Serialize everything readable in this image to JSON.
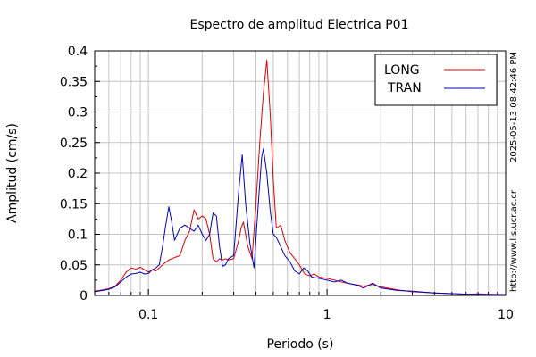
{
  "chart_data": {
    "type": "line",
    "title": "Espectro de amplitud Electrica P01",
    "xlabel": "Periodo (s)",
    "ylabel": "Amplitud (cm/s)",
    "xscale": "log",
    "xlim": [
      0.05,
      10
    ],
    "ylim": [
      0,
      0.4
    ],
    "x_ticks": [
      0.1,
      1,
      10
    ],
    "x_tick_labels": [
      "0.1",
      "1",
      "10"
    ],
    "y_ticks": [
      0,
      0.05,
      0.1,
      0.15,
      0.2,
      0.25,
      0.3,
      0.35,
      0.4
    ],
    "y_tick_labels": [
      "0",
      "0.05",
      "0.1",
      "0.15",
      "0.2",
      "0.25",
      "0.3",
      "0.35",
      "0.4"
    ],
    "grid": true,
    "legend_position": "top-right",
    "side_labels": [
      "2025-05-13 08:42:46 PM",
      "http://www.lis.ucr.ac.cr"
    ],
    "series": [
      {
        "name": "LONG",
        "color": "#e00000",
        "points": [
          [
            0.05,
            0.007
          ],
          [
            0.055,
            0.009
          ],
          [
            0.06,
            0.011
          ],
          [
            0.065,
            0.015
          ],
          [
            0.07,
            0.025
          ],
          [
            0.075,
            0.038
          ],
          [
            0.08,
            0.045
          ],
          [
            0.085,
            0.043
          ],
          [
            0.09,
            0.046
          ],
          [
            0.095,
            0.042
          ],
          [
            0.1,
            0.038
          ],
          [
            0.105,
            0.042
          ],
          [
            0.11,
            0.04
          ],
          [
            0.115,
            0.045
          ],
          [
            0.12,
            0.05
          ],
          [
            0.13,
            0.058
          ],
          [
            0.14,
            0.062
          ],
          [
            0.15,
            0.065
          ],
          [
            0.16,
            0.09
          ],
          [
            0.17,
            0.105
          ],
          [
            0.18,
            0.14
          ],
          [
            0.19,
            0.125
          ],
          [
            0.2,
            0.13
          ],
          [
            0.21,
            0.125
          ],
          [
            0.22,
            0.1
          ],
          [
            0.23,
            0.06
          ],
          [
            0.24,
            0.055
          ],
          [
            0.25,
            0.06
          ],
          [
            0.26,
            0.058
          ],
          [
            0.27,
            0.06
          ],
          [
            0.28,
            0.058
          ],
          [
            0.3,
            0.06
          ],
          [
            0.32,
            0.09
          ],
          [
            0.33,
            0.11
          ],
          [
            0.34,
            0.12
          ],
          [
            0.36,
            0.08
          ],
          [
            0.38,
            0.06
          ],
          [
            0.4,
            0.15
          ],
          [
            0.42,
            0.25
          ],
          [
            0.44,
            0.33
          ],
          [
            0.46,
            0.385
          ],
          [
            0.48,
            0.3
          ],
          [
            0.5,
            0.19
          ],
          [
            0.52,
            0.11
          ],
          [
            0.55,
            0.115
          ],
          [
            0.58,
            0.09
          ],
          [
            0.62,
            0.07
          ],
          [
            0.66,
            0.06
          ],
          [
            0.7,
            0.05
          ],
          [
            0.75,
            0.035
          ],
          [
            0.8,
            0.032
          ],
          [
            0.85,
            0.035
          ],
          [
            0.9,
            0.03
          ],
          [
            1.0,
            0.028
          ],
          [
            1.1,
            0.025
          ],
          [
            1.2,
            0.022
          ],
          [
            1.3,
            0.02
          ],
          [
            1.4,
            0.018
          ],
          [
            1.5,
            0.017
          ],
          [
            1.6,
            0.015
          ],
          [
            1.8,
            0.018
          ],
          [
            2.0,
            0.014
          ],
          [
            2.5,
            0.009
          ],
          [
            3.0,
            0.006
          ],
          [
            4.0,
            0.004
          ],
          [
            5.0,
            0.003
          ],
          [
            6.0,
            0.002
          ],
          [
            7.0,
            0.0025
          ],
          [
            8.0,
            0.002
          ],
          [
            10.0,
            0.0015
          ]
        ]
      },
      {
        "name": "TRAN",
        "color": "#0000c0",
        "points": [
          [
            0.05,
            0.006
          ],
          [
            0.055,
            0.008
          ],
          [
            0.06,
            0.01
          ],
          [
            0.065,
            0.014
          ],
          [
            0.07,
            0.022
          ],
          [
            0.075,
            0.03
          ],
          [
            0.08,
            0.035
          ],
          [
            0.085,
            0.036
          ],
          [
            0.09,
            0.038
          ],
          [
            0.095,
            0.035
          ],
          [
            0.1,
            0.036
          ],
          [
            0.105,
            0.042
          ],
          [
            0.11,
            0.045
          ],
          [
            0.115,
            0.05
          ],
          [
            0.12,
            0.08
          ],
          [
            0.125,
            0.115
          ],
          [
            0.13,
            0.145
          ],
          [
            0.135,
            0.12
          ],
          [
            0.14,
            0.09
          ],
          [
            0.15,
            0.11
          ],
          [
            0.16,
            0.115
          ],
          [
            0.17,
            0.11
          ],
          [
            0.18,
            0.105
          ],
          [
            0.19,
            0.115
          ],
          [
            0.2,
            0.1
          ],
          [
            0.21,
            0.09
          ],
          [
            0.22,
            0.1
          ],
          [
            0.23,
            0.135
          ],
          [
            0.24,
            0.13
          ],
          [
            0.25,
            0.08
          ],
          [
            0.26,
            0.048
          ],
          [
            0.27,
            0.05
          ],
          [
            0.28,
            0.06
          ],
          [
            0.3,
            0.065
          ],
          [
            0.32,
            0.17
          ],
          [
            0.335,
            0.23
          ],
          [
            0.35,
            0.15
          ],
          [
            0.37,
            0.085
          ],
          [
            0.39,
            0.045
          ],
          [
            0.41,
            0.14
          ],
          [
            0.43,
            0.225
          ],
          [
            0.44,
            0.24
          ],
          [
            0.46,
            0.2
          ],
          [
            0.48,
            0.14
          ],
          [
            0.5,
            0.1
          ],
          [
            0.52,
            0.095
          ],
          [
            0.55,
            0.08
          ],
          [
            0.58,
            0.065
          ],
          [
            0.62,
            0.055
          ],
          [
            0.66,
            0.04
          ],
          [
            0.7,
            0.035
          ],
          [
            0.74,
            0.045
          ],
          [
            0.78,
            0.04
          ],
          [
            0.82,
            0.03
          ],
          [
            0.9,
            0.028
          ],
          [
            1.0,
            0.025
          ],
          [
            1.1,
            0.022
          ],
          [
            1.2,
            0.025
          ],
          [
            1.3,
            0.02
          ],
          [
            1.4,
            0.018
          ],
          [
            1.5,
            0.016
          ],
          [
            1.6,
            0.012
          ],
          [
            1.8,
            0.02
          ],
          [
            2.0,
            0.012
          ],
          [
            2.5,
            0.008
          ],
          [
            3.0,
            0.007
          ],
          [
            4.0,
            0.004
          ],
          [
            5.0,
            0.003
          ],
          [
            6.0,
            0.002
          ],
          [
            8.0,
            0.0015
          ],
          [
            10.0,
            0.001
          ]
        ]
      }
    ]
  }
}
